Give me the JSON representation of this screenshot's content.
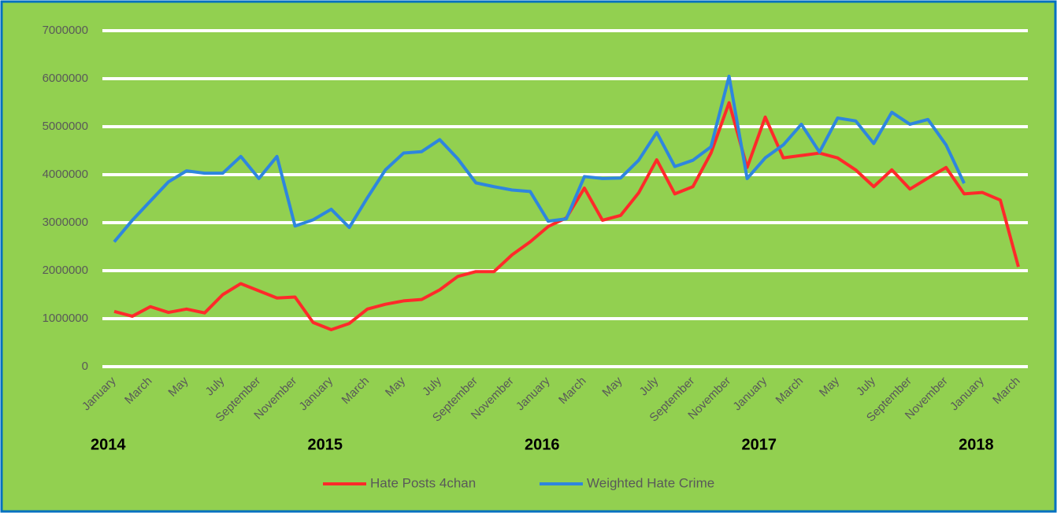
{
  "chart_data": {
    "type": "line",
    "categories": [
      "January",
      null,
      "March",
      null,
      "May",
      null,
      "July",
      null,
      "September",
      null,
      "November",
      null,
      "January",
      null,
      "March",
      null,
      "May",
      null,
      "July",
      null,
      "September",
      null,
      "November",
      null,
      "January",
      null,
      "March",
      null,
      "May",
      null,
      "July",
      null,
      "September",
      null,
      "November",
      null,
      "January",
      null,
      "March",
      null,
      "May",
      null,
      "July",
      null,
      "September",
      null,
      "November",
      null,
      "January",
      null,
      "March"
    ],
    "years": [
      "2014",
      "2015",
      "2016",
      "2017",
      "2018"
    ],
    "series": [
      {
        "name": "Hate Posts 4chan",
        "color": "#ff2a2a",
        "values": [
          1150000,
          1050000,
          1250000,
          1130000,
          1200000,
          1120000,
          1500000,
          1730000,
          1580000,
          1430000,
          1450000,
          920000,
          770000,
          900000,
          1200000,
          1300000,
          1370000,
          1400000,
          1600000,
          1880000,
          1980000,
          1980000,
          2330000,
          2600000,
          2920000,
          3100000,
          3720000,
          3050000,
          3150000,
          3620000,
          4310000,
          3600000,
          3750000,
          4450000,
          5500000,
          4150000,
          5200000,
          4350000,
          4400000,
          4450000,
          4350000,
          4100000,
          3750000,
          4100000,
          3700000,
          3930000,
          4150000,
          3600000,
          3630000,
          3470000,
          2080000
        ]
      },
      {
        "name": "Weighted Hate Crime",
        "color": "#2e86de",
        "values": [
          2600000,
          3050000,
          3450000,
          3850000,
          4080000,
          4030000,
          4030000,
          4380000,
          3920000,
          4380000,
          2930000,
          3060000,
          3280000,
          2900000,
          3520000,
          4100000,
          4450000,
          4480000,
          4730000,
          4330000,
          3830000,
          3750000,
          3680000,
          3650000,
          3030000,
          3080000,
          3960000,
          3920000,
          3930000,
          4300000,
          4880000,
          4170000,
          4300000,
          4580000,
          6050000,
          3920000,
          4350000,
          4620000,
          5050000,
          4470000,
          5180000,
          5120000,
          4650000,
          5300000,
          5050000,
          5150000,
          4620000,
          3820000,
          null,
          null,
          null
        ]
      }
    ],
    "ylim": [
      0,
      7000000
    ],
    "yticks": [
      0,
      1000000,
      2000000,
      3000000,
      4000000,
      5000000,
      6000000,
      7000000
    ],
    "grid": true,
    "legend": "bottom"
  }
}
